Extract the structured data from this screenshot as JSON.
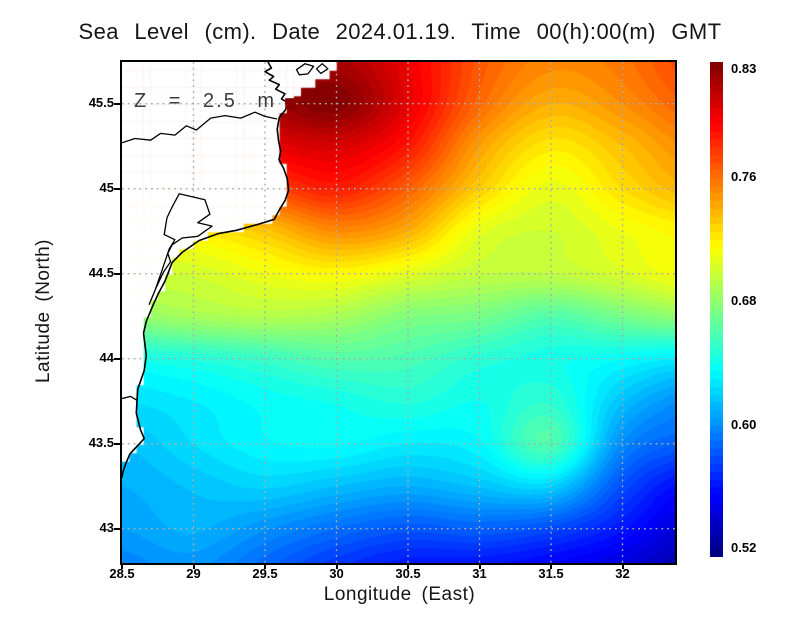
{
  "title": "Sea Level (cm). Date 2024.01.19. Time 00(h):00(m) GMT",
  "annotation": {
    "label": "Z = 2.5 m",
    "marker_color": "#8a0000",
    "marker_lon": 29.68,
    "marker_lat": 45.5
  },
  "axes": {
    "xlabel": "Longitude (East)",
    "ylabel": "Latitude (North)",
    "x_ticks": [
      {
        "label": "28.5",
        "value": 28.5
      },
      {
        "label": "29",
        "value": 29
      },
      {
        "label": "29.5",
        "value": 29.5
      },
      {
        "label": "30",
        "value": 30
      },
      {
        "label": "30.5",
        "value": 30.5
      },
      {
        "label": "31",
        "value": 31
      },
      {
        "label": "31.5",
        "value": 31.5
      },
      {
        "label": "32",
        "value": 32
      }
    ],
    "y_ticks": [
      {
        "label": "45.5",
        "value": 45.5
      },
      {
        "label": "45",
        "value": 45
      },
      {
        "label": "44.5",
        "value": 44.5
      },
      {
        "label": "44",
        "value": 44
      },
      {
        "label": "43.5",
        "value": 43.5
      },
      {
        "label": "43",
        "value": 43
      }
    ]
  },
  "colorbar": {
    "vmin": 0.515,
    "vmax": 0.835,
    "ticks": [
      {
        "label": "0.83",
        "value": 0.83
      },
      {
        "label": "0.76",
        "value": 0.76
      },
      {
        "label": "0.68",
        "value": 0.68
      },
      {
        "label": "0.60",
        "value": 0.6
      },
      {
        "label": "0.52",
        "value": 0.52
      }
    ]
  },
  "chart_data": {
    "type": "heatmap",
    "title": "Sea Level (cm). Date 2024.01.19. Time 00(h):00(m) GMT",
    "xlabel": "Longitude (East)",
    "ylabel": "Latitude (North)",
    "xlim": [
      28.5,
      32.367
    ],
    "ylim": [
      42.798,
      45.745
    ],
    "colormap": "jet",
    "vmin": 0.515,
    "vmax": 0.835,
    "levels": 64,
    "grid_on": true,
    "gridlines": {
      "x": [
        29,
        29.5,
        30,
        30.5,
        31,
        31.5,
        32
      ],
      "y": [
        43,
        43.5,
        44,
        44.5,
        45,
        45.5
      ]
    },
    "grid_lons": [
      28.5,
      29.0,
      29.5,
      30.0,
      30.5,
      31.0,
      31.5,
      32.0,
      32.5
    ],
    "grid_lats": [
      45.75,
      45.5,
      45.25,
      45.0,
      44.75,
      44.5,
      44.25,
      44.0,
      43.75,
      43.5,
      43.25,
      43.0,
      42.75
    ],
    "values": [
      [
        0.8,
        0.802,
        0.815,
        0.822,
        0.8,
        0.768,
        0.752,
        0.758,
        0.775
      ],
      [
        0.8,
        0.806,
        0.821,
        0.833,
        0.802,
        0.762,
        0.74,
        0.75,
        0.766
      ],
      [
        0.79,
        0.792,
        0.801,
        0.807,
        0.788,
        0.745,
        0.722,
        0.735,
        0.752
      ],
      [
        0.77,
        0.77,
        0.773,
        0.786,
        0.765,
        0.73,
        0.708,
        0.725,
        0.74
      ],
      [
        0.72,
        0.722,
        0.733,
        0.751,
        0.74,
        0.707,
        0.7,
        0.71,
        0.718
      ],
      [
        0.7,
        0.701,
        0.71,
        0.716,
        0.706,
        0.696,
        0.695,
        0.703,
        0.714
      ],
      [
        0.68,
        0.687,
        0.691,
        0.688,
        0.676,
        0.672,
        0.661,
        0.672,
        0.682
      ],
      [
        0.641,
        0.646,
        0.653,
        0.661,
        0.658,
        0.648,
        0.642,
        0.636,
        0.628
      ],
      [
        0.625,
        0.63,
        0.637,
        0.641,
        0.646,
        0.64,
        0.649,
        0.616,
        0.598
      ],
      [
        0.615,
        0.625,
        0.634,
        0.636,
        0.63,
        0.634,
        0.659,
        0.599,
        0.584
      ],
      [
        0.61,
        0.616,
        0.621,
        0.615,
        0.61,
        0.616,
        0.621,
        0.579,
        0.555
      ],
      [
        0.605,
        0.611,
        0.601,
        0.59,
        0.582,
        0.585,
        0.578,
        0.561,
        0.539
      ],
      [
        0.596,
        0.601,
        0.586,
        0.57,
        0.56,
        0.558,
        0.552,
        0.542,
        0.527
      ]
    ],
    "land_cell_deg": 0.05,
    "land_polygon": [
      [
        30.04,
        45.745
      ],
      [
        29.95,
        45.68
      ],
      [
        29.86,
        45.63
      ],
      [
        29.76,
        45.585
      ],
      [
        29.7,
        45.55
      ],
      [
        29.665,
        45.503
      ],
      [
        29.64,
        45.46
      ],
      [
        29.6,
        45.42
      ],
      [
        29.585,
        45.35
      ],
      [
        29.595,
        45.28
      ],
      [
        29.61,
        45.22
      ],
      [
        29.598,
        45.17
      ],
      [
        29.63,
        45.12
      ],
      [
        29.655,
        45.06
      ],
      [
        29.665,
        44.99
      ],
      [
        29.64,
        44.93
      ],
      [
        29.6,
        44.875
      ],
      [
        29.565,
        44.82
      ],
      [
        29.45,
        44.79
      ],
      [
        29.3,
        44.755
      ],
      [
        29.17,
        44.735
      ],
      [
        29.04,
        44.695
      ],
      [
        28.92,
        44.625
      ],
      [
        28.85,
        44.565
      ],
      [
        28.8,
        44.455
      ],
      [
        28.755,
        44.385
      ],
      [
        28.715,
        44.31
      ],
      [
        28.67,
        44.22
      ],
      [
        28.65,
        44.15
      ],
      [
        28.67,
        44.02
      ],
      [
        28.655,
        43.93
      ],
      [
        28.61,
        43.82
      ],
      [
        28.6,
        43.68
      ],
      [
        28.63,
        43.58
      ],
      [
        28.655,
        43.53
      ],
      [
        28.6,
        43.48
      ],
      [
        28.555,
        43.44
      ],
      [
        28.525,
        43.38
      ],
      [
        28.505,
        43.33
      ],
      [
        28.5,
        43.3
      ],
      [
        28.4,
        43.26
      ],
      [
        28.4,
        45.85
      ],
      [
        30.06,
        45.85
      ]
    ],
    "coast_stroke": [
      [
        29.52,
        45.745
      ],
      [
        29.545,
        45.71
      ],
      [
        29.5,
        45.688
      ],
      [
        29.56,
        45.66
      ],
      [
        29.53,
        45.638
      ],
      [
        29.6,
        45.612
      ],
      [
        29.575,
        45.585
      ],
      [
        29.64,
        45.558
      ],
      [
        29.615,
        45.528
      ],
      [
        29.665,
        45.503
      ],
      [
        29.64,
        45.46
      ],
      [
        29.6,
        45.42
      ],
      [
        29.585,
        45.35
      ],
      [
        29.595,
        45.28
      ],
      [
        29.61,
        45.22
      ],
      [
        29.598,
        45.17
      ],
      [
        29.63,
        45.12
      ],
      [
        29.655,
        45.06
      ],
      [
        29.665,
        44.99
      ],
      [
        29.64,
        44.93
      ],
      [
        29.6,
        44.875
      ],
      [
        29.565,
        44.82
      ],
      [
        29.45,
        44.79
      ],
      [
        29.3,
        44.755
      ],
      [
        29.17,
        44.735
      ],
      [
        29.04,
        44.695
      ],
      [
        28.92,
        44.625
      ],
      [
        28.85,
        44.565
      ],
      [
        28.8,
        44.455
      ],
      [
        28.755,
        44.385
      ],
      [
        28.715,
        44.31
      ],
      [
        28.67,
        44.22
      ],
      [
        28.65,
        44.15
      ],
      [
        28.67,
        44.02
      ],
      [
        28.655,
        43.93
      ],
      [
        28.61,
        43.82
      ],
      [
        28.6,
        43.68
      ],
      [
        28.63,
        43.58
      ],
      [
        28.655,
        43.53
      ],
      [
        28.6,
        43.48
      ],
      [
        28.555,
        43.44
      ],
      [
        28.525,
        43.38
      ],
      [
        28.505,
        43.33
      ],
      [
        28.5,
        43.3
      ]
    ],
    "decor_open_paths": [
      [
        [
          29.585,
          45.41
        ],
        [
          29.5,
          45.425
        ],
        [
          29.43,
          45.45
        ],
        [
          29.33,
          45.415
        ],
        [
          29.22,
          45.43
        ],
        [
          29.12,
          45.415
        ],
        [
          29.02,
          45.345
        ],
        [
          28.95,
          45.37
        ],
        [
          28.87,
          45.315
        ],
        [
          28.77,
          45.325
        ],
        [
          28.7,
          45.285
        ],
        [
          28.59,
          45.295
        ],
        [
          28.5,
          45.27
        ]
      ],
      [
        [
          28.5,
          43.765
        ],
        [
          28.56,
          43.778
        ],
        [
          28.605,
          43.755
        ]
      ]
    ],
    "decor_closed_paths": [
      [
        [
          28.9,
          44.97
        ],
        [
          29.08,
          44.935
        ],
        [
          29.115,
          44.85
        ],
        [
          29.03,
          44.8
        ],
        [
          29.13,
          44.78
        ],
        [
          29.03,
          44.72
        ],
        [
          28.92,
          44.71
        ],
        [
          28.85,
          44.67
        ],
        [
          28.82,
          44.62
        ],
        [
          28.84,
          44.57
        ],
        [
          28.79,
          44.51
        ],
        [
          28.74,
          44.42
        ],
        [
          28.69,
          44.32
        ],
        [
          28.73,
          44.4
        ],
        [
          28.78,
          44.52
        ],
        [
          28.83,
          44.645
        ],
        [
          28.87,
          44.7
        ],
        [
          28.795,
          44.73
        ],
        [
          28.815,
          44.83
        ],
        [
          28.855,
          44.9
        ]
      ],
      [
        [
          29.72,
          45.7
        ],
        [
          29.78,
          45.735
        ],
        [
          29.84,
          45.72
        ],
        [
          29.8,
          45.675
        ],
        [
          29.74,
          45.67
        ]
      ],
      [
        [
          29.86,
          45.705
        ],
        [
          29.9,
          45.735
        ],
        [
          29.94,
          45.705
        ],
        [
          29.89,
          45.678
        ]
      ]
    ],
    "grid_color": "#ababab",
    "coast_color": "#000000",
    "land_color": "#ffffff"
  }
}
